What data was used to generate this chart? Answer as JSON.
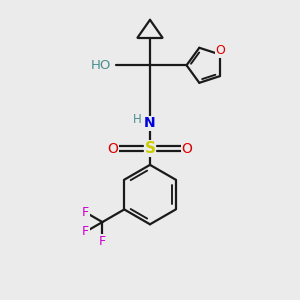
{
  "bg_color": "#ebebeb",
  "bond_color": "#1a1a1a",
  "O_color": "#dd0000",
  "N_color": "#0000dd",
  "S_color": "#cccc00",
  "F_color": "#cc00cc",
  "HO_color": "#4a8f8f",
  "H_color": "#4a8f8f",
  "line_width": 1.6,
  "font_size": 9,
  "fig_size": [
    3.0,
    3.0
  ],
  "dpi": 100,
  "xlim": [
    0,
    10
  ],
  "ylim": [
    0,
    10
  ]
}
